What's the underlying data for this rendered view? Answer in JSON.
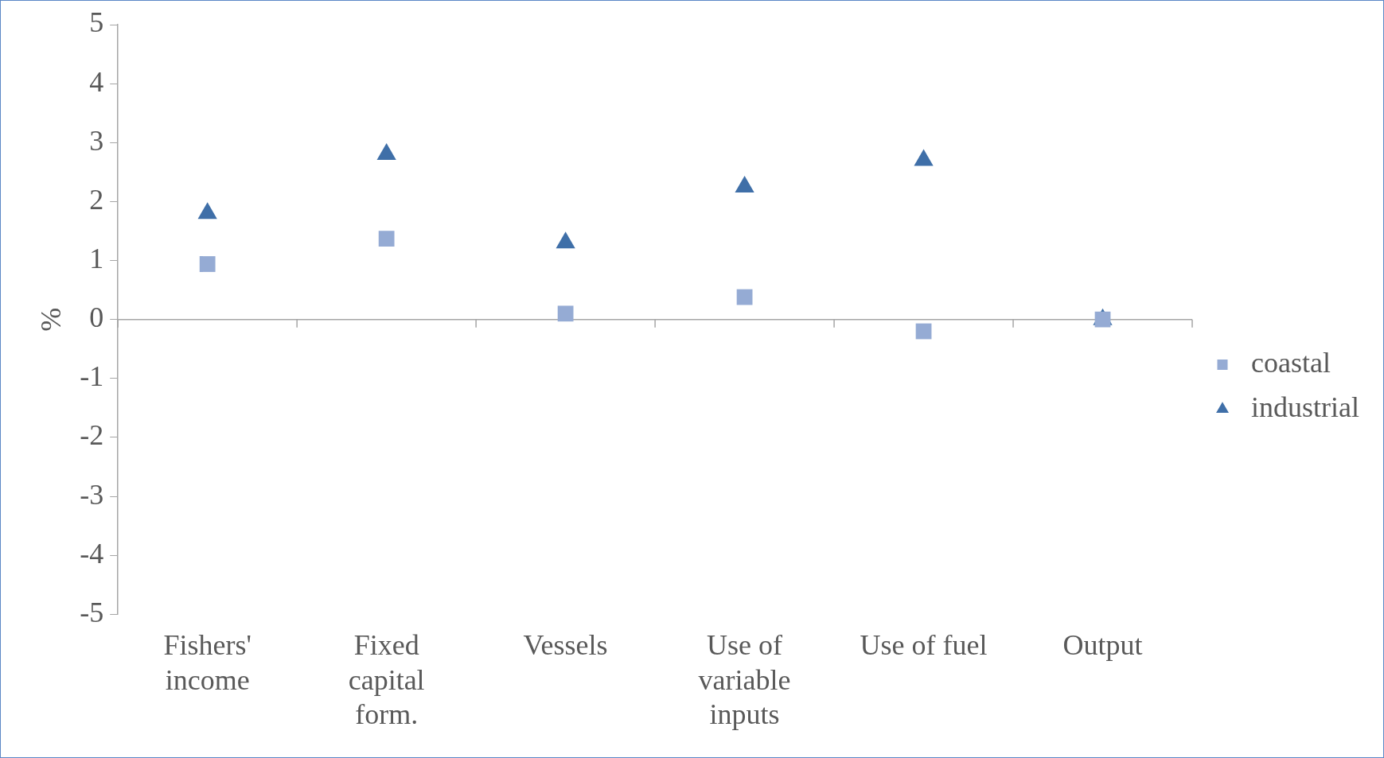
{
  "chart_data": {
    "type": "scatter",
    "ylabel": "%",
    "categories": [
      "Fishers' income",
      "Fixed capital form.",
      "Vessels",
      "Use of variable inputs",
      "Use of fuel",
      "Output"
    ],
    "series": [
      {
        "name": "coastal",
        "color": "#95abd4",
        "marker": "square",
        "values": [
          0.94,
          1.37,
          0.1,
          0.38,
          -0.2,
          0
        ]
      },
      {
        "name": "industrial",
        "color": "#3f6fa8",
        "marker": "triangle",
        "values": [
          1.8,
          2.8,
          1.3,
          2.25,
          2.7,
          0
        ]
      }
    ],
    "ylim": [
      -5,
      5
    ],
    "yticks": [
      -5,
      -4,
      -3,
      -2,
      -1,
      0,
      1,
      2,
      3,
      4,
      5
    ],
    "legend": "right"
  }
}
